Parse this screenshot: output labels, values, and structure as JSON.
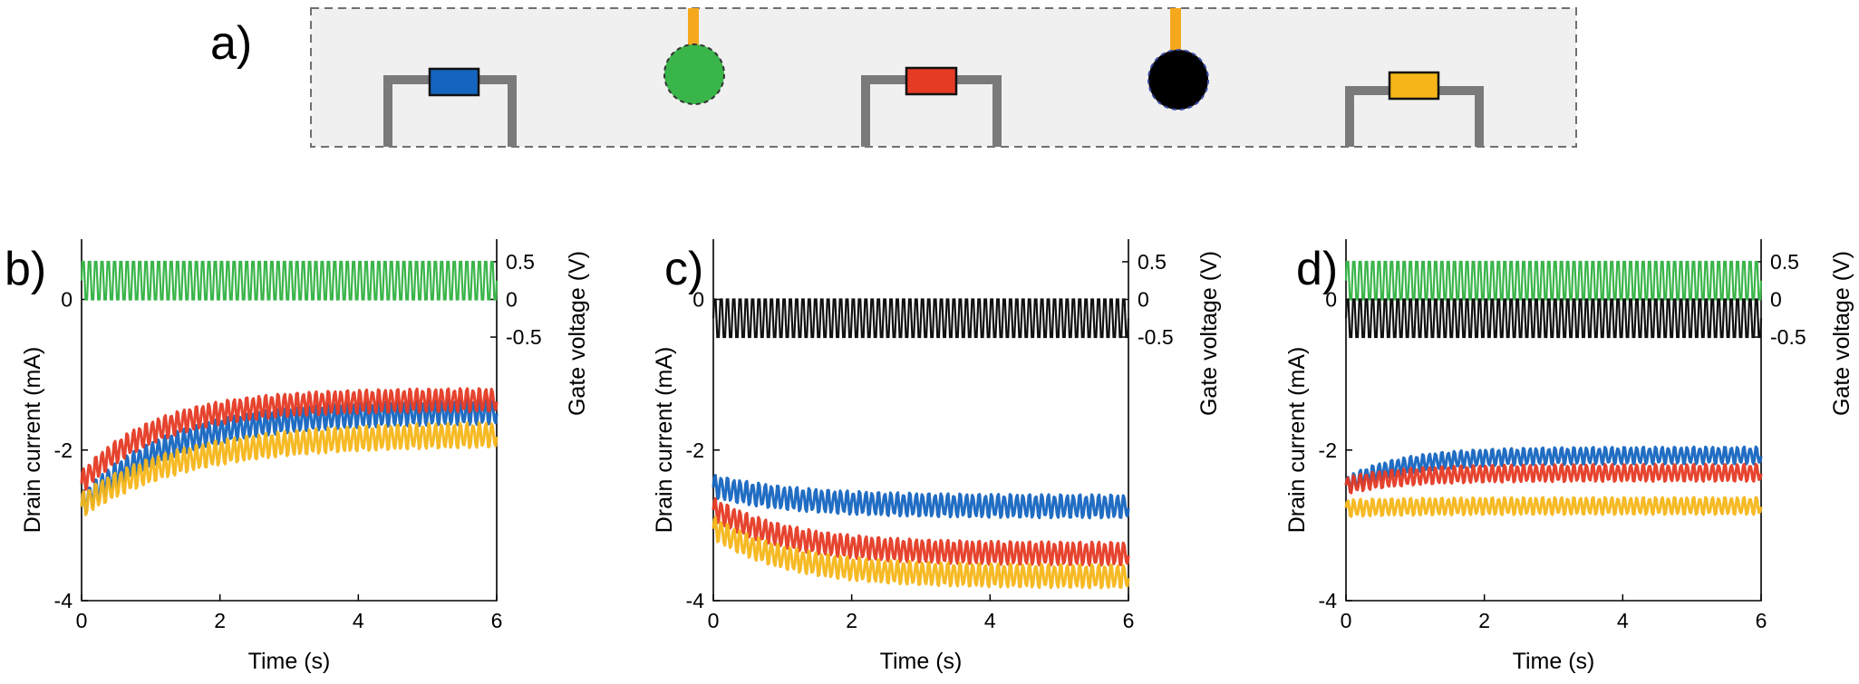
{
  "figure": {
    "panel_a": {
      "label": "a)",
      "schematic": {
        "devices": [
          {
            "kind": "transistor",
            "color": "#1565c0"
          },
          {
            "kind": "gate-electrode",
            "color": "#3ab54a"
          },
          {
            "kind": "transistor",
            "color": "#e53a24"
          },
          {
            "kind": "gate-electrode",
            "color": "#000000"
          },
          {
            "kind": "transistor",
            "color": "#f6b619"
          }
        ],
        "contact_color": "#f6a81c",
        "channel_color": "#7a7a7a",
        "background_color": "#f0f0f0"
      }
    },
    "colors": {
      "blue": "#1565c0",
      "red": "#e53a24",
      "yellow": "#f6b619",
      "green": "#3ab54a",
      "black": "#111111"
    }
  },
  "chart_data": [
    {
      "panel": "b)",
      "type": "line",
      "xlabel": "Time (s)",
      "ylabel": "Drain current (mA)",
      "y2label": "Gate voltage (V)",
      "xlim": [
        0,
        6
      ],
      "ylim": [
        -4,
        0.8
      ],
      "xticks": [
        "0",
        "2",
        "4",
        "6"
      ],
      "yticks": [
        {
          "v": 0,
          "t": "0"
        },
        {
          "v": -2,
          "t": "-2"
        },
        {
          "v": -4,
          "t": "-4"
        }
      ],
      "y2ticks": [
        "0.5",
        "0",
        "-0.5"
      ],
      "y2ticks_values": [
        0.5,
        0,
        -0.5
      ],
      "gate_signals": [
        {
          "color": "green",
          "low": 0,
          "high": 0.5,
          "cycles": 66
        }
      ],
      "series": [
        {
          "color": "blue",
          "start": -2.7,
          "end": -1.45,
          "tau": 1.3,
          "amplitude": 0.32
        },
        {
          "color": "red",
          "start": -2.4,
          "end": -1.3,
          "tau": 1.1,
          "amplitude": 0.3
        },
        {
          "color": "yellow",
          "start": -2.7,
          "end": -1.75,
          "tau": 1.5,
          "amplitude": 0.32
        }
      ],
      "cycles": 66
    },
    {
      "panel": "c)",
      "type": "line",
      "xlabel": "Time (s)",
      "ylabel": "Drain current (mA)",
      "y2label": "Gate voltage (V)",
      "xlim": [
        0,
        6
      ],
      "ylim": [
        -4,
        0.8
      ],
      "xticks": [
        "0",
        "2",
        "4",
        "6"
      ],
      "yticks": [
        {
          "v": 0,
          "t": "0"
        },
        {
          "v": -2,
          "t": "-2"
        },
        {
          "v": -4,
          "t": "-4"
        }
      ],
      "y2ticks": [
        "0.5",
        "0",
        "-0.5"
      ],
      "y2ticks_values": [
        0.5,
        0,
        -0.5
      ],
      "gate_signals": [
        {
          "color": "black",
          "low": -0.5,
          "high": 0,
          "cycles": 66
        }
      ],
      "series": [
        {
          "color": "blue",
          "start": -2.45,
          "end": -2.72,
          "tau": 1.2,
          "amplitude": 0.3
        },
        {
          "color": "red",
          "start": -2.75,
          "end": -3.35,
          "tau": 1.1,
          "amplitude": 0.3
        },
        {
          "color": "yellow",
          "start": -3.0,
          "end": -3.65,
          "tau": 1.1,
          "amplitude": 0.3
        }
      ],
      "cycles": 66
    },
    {
      "panel": "d)",
      "type": "line",
      "xlabel": "Time (s)",
      "ylabel": "Drain current (mA)",
      "y2label": "Gate voltage (V)",
      "xlim": [
        0,
        6
      ],
      "ylim": [
        -4,
        0.8
      ],
      "xticks": [
        "0",
        "2",
        "4",
        "6"
      ],
      "yticks": [
        {
          "v": 0,
          "t": "0"
        },
        {
          "v": -2,
          "t": "-2"
        },
        {
          "v": -4,
          "t": "-4"
        }
      ],
      "y2ticks": [
        "0.5",
        "0",
        "-0.5"
      ],
      "y2ticks_values": [
        0.5,
        0,
        -0.5
      ],
      "gate_signals": [
        {
          "color": "green",
          "low": 0,
          "high": 0.5,
          "cycles": 66
        },
        {
          "color": "black",
          "low": -0.5,
          "high": 0,
          "cycles": 66
        }
      ],
      "series": [
        {
          "color": "blue",
          "start": -2.45,
          "end": -2.05,
          "tau": 0.8,
          "amplitude": 0.22
        },
        {
          "color": "red",
          "start": -2.45,
          "end": -2.28,
          "tau": 0.8,
          "amplitude": 0.22
        },
        {
          "color": "yellow",
          "start": -2.75,
          "end": -2.72,
          "tau": 1.0,
          "amplitude": 0.22
        }
      ],
      "cycles": 66
    }
  ]
}
